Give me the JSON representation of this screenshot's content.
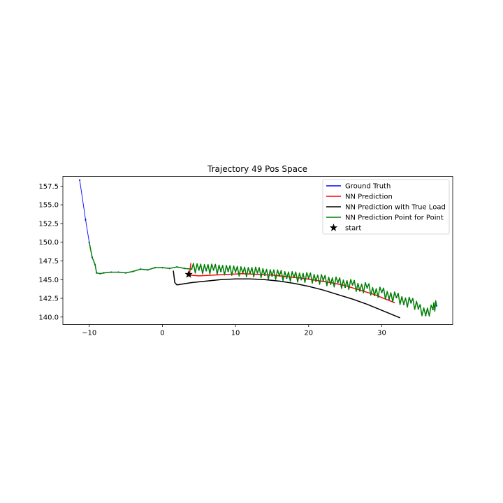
{
  "chart_data": {
    "type": "line",
    "title": "Trajectory 49 Pos Space",
    "xlabel": "",
    "ylabel": "",
    "xlim": [
      -13.6,
      39.7
    ],
    "ylim": [
      139.0,
      158.8
    ],
    "xticks": [
      -10,
      0,
      10,
      20,
      30
    ],
    "yticks": [
      140.0,
      142.5,
      145.0,
      147.5,
      150.0,
      152.5,
      155.0,
      157.5
    ],
    "xtick_labels": [
      "−10",
      "0",
      "10",
      "20",
      "30"
    ],
    "ytick_labels": [
      "140.0",
      "142.5",
      "145.0",
      "147.5",
      "150.0",
      "152.5",
      "155.0",
      "157.5"
    ],
    "grid": false,
    "legend_position": "top-right",
    "series": [
      {
        "name": "Ground Truth",
        "color": "#0000ff",
        "marker": "dot",
        "points": [
          [
            -11.3,
            158.3
          ],
          [
            -10.5,
            153.0
          ],
          [
            -10.0,
            150.0
          ],
          [
            -9.6,
            148.0
          ],
          [
            -9.2,
            147.0
          ],
          [
            -9.0,
            145.9
          ],
          [
            -8.5,
            145.8
          ],
          [
            -8.0,
            145.9
          ],
          [
            -7.0,
            146.0
          ],
          [
            -6.0,
            146.0
          ],
          [
            -5.0,
            145.9
          ],
          [
            -4.0,
            146.1
          ],
          [
            -3.0,
            146.4
          ],
          [
            -2.0,
            146.3
          ],
          [
            -1.0,
            146.6
          ],
          [
            0.0,
            146.6
          ],
          [
            1.0,
            146.5
          ],
          [
            2.0,
            146.7
          ],
          [
            3.0,
            146.5
          ],
          [
            4.0,
            146.4
          ],
          [
            5.0,
            146.3
          ],
          [
            6.0,
            146.2
          ],
          [
            7.0,
            146.3
          ],
          [
            8.0,
            146.1
          ],
          [
            9.0,
            146.1
          ],
          [
            10.0,
            146.0
          ],
          [
            11.0,
            145.9
          ],
          [
            12.0,
            145.8
          ],
          [
            13.0,
            145.9
          ],
          [
            14.0,
            145.6
          ],
          [
            15.0,
            145.5
          ],
          [
            16.0,
            145.5
          ],
          [
            17.0,
            145.2
          ],
          [
            18.0,
            145.3
          ],
          [
            19.0,
            145.0
          ],
          [
            20.0,
            145.2
          ],
          [
            21.0,
            144.8
          ],
          [
            22.0,
            144.9
          ],
          [
            23.0,
            144.4
          ],
          [
            24.0,
            144.6
          ],
          [
            25.0,
            144.0
          ],
          [
            26.0,
            144.3
          ],
          [
            27.0,
            143.5
          ],
          [
            28.0,
            143.9
          ],
          [
            29.0,
            142.9
          ],
          [
            30.0,
            143.3
          ],
          [
            31.0,
            142.4
          ],
          [
            32.0,
            142.6
          ],
          [
            33.0,
            141.7
          ],
          [
            34.0,
            141.9
          ],
          [
            35.0,
            141.1
          ],
          [
            36.0,
            140.2
          ],
          [
            37.0,
            141.0
          ],
          [
            37.5,
            141.5
          ]
        ],
        "zigzag_from_x": 4,
        "zigzag_amp": 0.7
      },
      {
        "name": "NN Prediction",
        "color": "#ff0000",
        "marker": "none",
        "points": [
          [
            3.9,
            147.2
          ],
          [
            3.7,
            145.6
          ],
          [
            5.0,
            145.5
          ],
          [
            7.0,
            145.6
          ],
          [
            9.0,
            145.7
          ],
          [
            11.0,
            145.8
          ],
          [
            13.0,
            145.7
          ],
          [
            15.0,
            145.6
          ],
          [
            17.0,
            145.4
          ],
          [
            19.0,
            145.2
          ],
          [
            21.0,
            144.9
          ],
          [
            23.0,
            144.6
          ],
          [
            25.0,
            144.2
          ],
          [
            27.0,
            143.6
          ],
          [
            29.0,
            143.0
          ],
          [
            30.5,
            142.4
          ],
          [
            31.8,
            141.9
          ]
        ],
        "zigzag_from_x": 99,
        "zigzag_amp": 0
      },
      {
        "name": "NN Prediction with True Load",
        "color": "#000000",
        "marker": "none",
        "points": [
          [
            1.5,
            146.2
          ],
          [
            1.7,
            144.6
          ],
          [
            2.0,
            144.3
          ],
          [
            4.0,
            144.6
          ],
          [
            6.0,
            144.8
          ],
          [
            8.0,
            145.0
          ],
          [
            10.0,
            145.1
          ],
          [
            12.0,
            145.1
          ],
          [
            14.0,
            145.0
          ],
          [
            16.0,
            144.8
          ],
          [
            18.0,
            144.5
          ],
          [
            20.0,
            144.1
          ],
          [
            22.0,
            143.6
          ],
          [
            24.0,
            143.0
          ],
          [
            26.0,
            142.4
          ],
          [
            28.0,
            141.7
          ],
          [
            30.0,
            140.9
          ],
          [
            32.5,
            139.9
          ]
        ],
        "zigzag_from_x": 99,
        "zigzag_amp": 0
      },
      {
        "name": "NN Prediction Point for Point",
        "color": "#008000",
        "marker": "none",
        "points": [
          [
            -10.0,
            150.0
          ],
          [
            -9.6,
            148.0
          ],
          [
            -9.2,
            147.0
          ],
          [
            -9.0,
            145.9
          ],
          [
            -8.5,
            145.8
          ],
          [
            -8.0,
            145.9
          ],
          [
            -7.0,
            146.0
          ],
          [
            -6.0,
            146.0
          ],
          [
            -5.0,
            145.9
          ],
          [
            -4.0,
            146.1
          ],
          [
            -3.0,
            146.4
          ],
          [
            -2.0,
            146.3
          ],
          [
            -1.0,
            146.6
          ],
          [
            0.0,
            146.6
          ],
          [
            1.0,
            146.5
          ],
          [
            2.0,
            146.7
          ],
          [
            3.0,
            146.5
          ],
          [
            4.0,
            146.4
          ],
          [
            5.0,
            146.3
          ],
          [
            6.0,
            146.2
          ],
          [
            7.0,
            146.3
          ],
          [
            8.0,
            146.1
          ],
          [
            9.0,
            146.1
          ],
          [
            10.0,
            146.0
          ],
          [
            11.0,
            145.9
          ],
          [
            12.0,
            145.8
          ],
          [
            13.0,
            145.9
          ],
          [
            14.0,
            145.6
          ],
          [
            15.0,
            145.5
          ],
          [
            16.0,
            145.5
          ],
          [
            17.0,
            145.2
          ],
          [
            18.0,
            145.3
          ],
          [
            19.0,
            145.0
          ],
          [
            20.0,
            145.2
          ],
          [
            21.0,
            144.8
          ],
          [
            22.0,
            144.9
          ],
          [
            23.0,
            144.4
          ],
          [
            24.0,
            144.6
          ],
          [
            25.0,
            144.0
          ],
          [
            26.0,
            144.3
          ],
          [
            27.0,
            143.5
          ],
          [
            28.0,
            143.9
          ],
          [
            29.0,
            142.9
          ],
          [
            30.0,
            143.3
          ],
          [
            31.0,
            142.4
          ],
          [
            32.0,
            142.6
          ],
          [
            33.0,
            141.7
          ],
          [
            34.0,
            141.9
          ],
          [
            35.0,
            141.1
          ],
          [
            36.0,
            140.2
          ],
          [
            37.0,
            141.0
          ],
          [
            37.5,
            141.5
          ]
        ],
        "zigzag_from_x": 4,
        "zigzag_amp": 0.8
      }
    ],
    "start_marker": {
      "name": "start",
      "color": "#000000",
      "x": 3.6,
      "y": 145.7
    }
  }
}
